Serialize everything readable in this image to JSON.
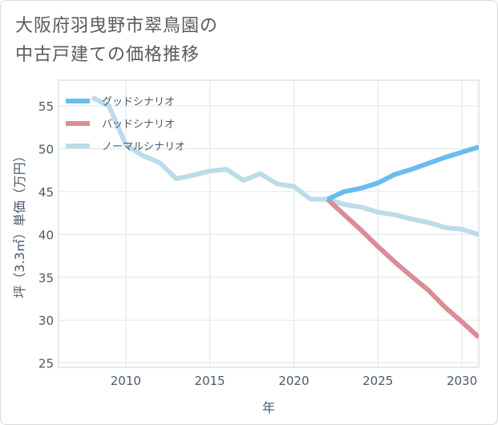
{
  "title": "大阪府羽曳野市翠鳥園の\n中古戸建ての価格推移",
  "chart_data": {
    "type": "line",
    "xlabel": "年",
    "ylabel": "坪（3.3㎡）単価（万円）",
    "xlim": [
      2006,
      2031
    ],
    "ylim": [
      24.5,
      58
    ],
    "xticks": [
      2010,
      2015,
      2020,
      2025,
      2030
    ],
    "yticks": [
      25,
      30,
      35,
      40,
      45,
      50,
      55
    ],
    "grid": true,
    "legend_position": "top-left",
    "series": [
      {
        "name": "グッドシナリオ",
        "color": "#6bbcee",
        "x": [
          2022,
          2023,
          2024,
          2025,
          2026,
          2027,
          2028,
          2029,
          2030,
          2031
        ],
        "y": [
          44.1,
          45.0,
          45.4,
          46.0,
          47.0,
          47.6,
          48.3,
          49.0,
          49.6,
          50.2
        ]
      },
      {
        "name": "バッドシナリオ",
        "color": "#dc8c96",
        "x": [
          2022,
          2023,
          2024,
          2025,
          2026,
          2027,
          2028,
          2029,
          2030,
          2031
        ],
        "y": [
          44.1,
          42.3,
          40.5,
          38.6,
          36.8,
          35.1,
          33.5,
          31.5,
          29.8,
          28.0
        ]
      },
      {
        "name": "ノーマルシナリオ",
        "color": "#bcdcea",
        "x": [
          2008,
          2009,
          2010,
          2011,
          2012,
          2013,
          2014,
          2015,
          2016,
          2017,
          2018,
          2019,
          2020,
          2021,
          2022,
          2023,
          2024,
          2025,
          2026,
          2027,
          2028,
          2029,
          2030,
          2031
        ],
        "y": [
          56.0,
          55.0,
          50.5,
          49.2,
          48.4,
          46.5,
          46.9,
          47.4,
          47.6,
          46.3,
          47.1,
          45.9,
          45.6,
          44.1,
          44.1,
          43.5,
          43.2,
          42.6,
          42.3,
          41.8,
          41.4,
          40.8,
          40.6,
          40.0
        ]
      }
    ]
  }
}
